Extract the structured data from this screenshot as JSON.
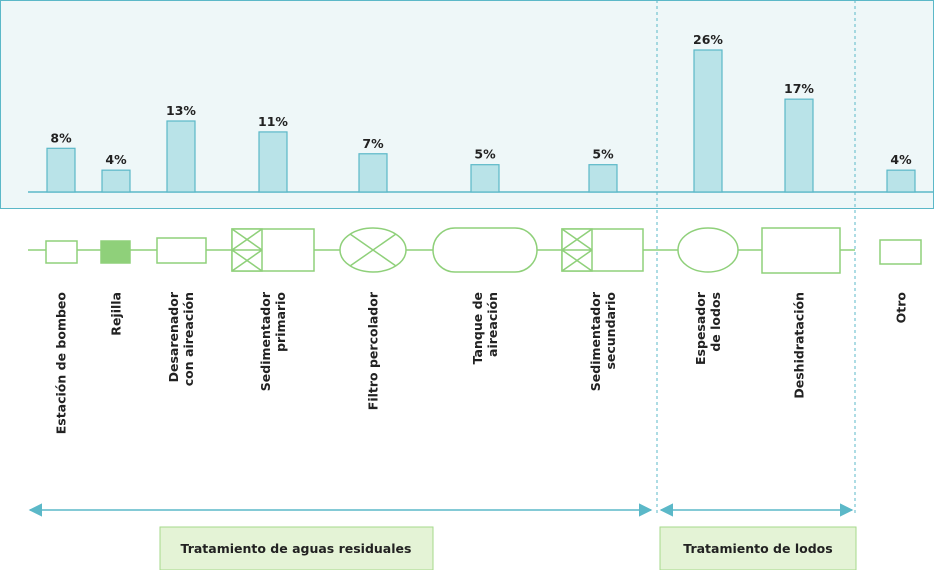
{
  "chart_data": {
    "type": "bar",
    "categories": [
      "Estación de bombeo",
      "Rejilla",
      "Desarenador\ncon aireación",
      "Sedimentador\nprimario",
      "Filtro percolador",
      "Tanque de\naireación",
      "Sedimentador\nsecundario",
      "Espesador\nde lodos",
      "Deshidratación",
      "Otro"
    ],
    "values": [
      8,
      4,
      13,
      11,
      7,
      5,
      5,
      26,
      17,
      4
    ],
    "value_labels": [
      "8%",
      "4%",
      "13%",
      "11%",
      "7%",
      "5%",
      "5%",
      "26%",
      "17%",
      "4%"
    ],
    "color": "#b9e3e8",
    "groups": [
      "Tratamiento de aguas residuales",
      "Tratamiento de lodos"
    ]
  }
}
